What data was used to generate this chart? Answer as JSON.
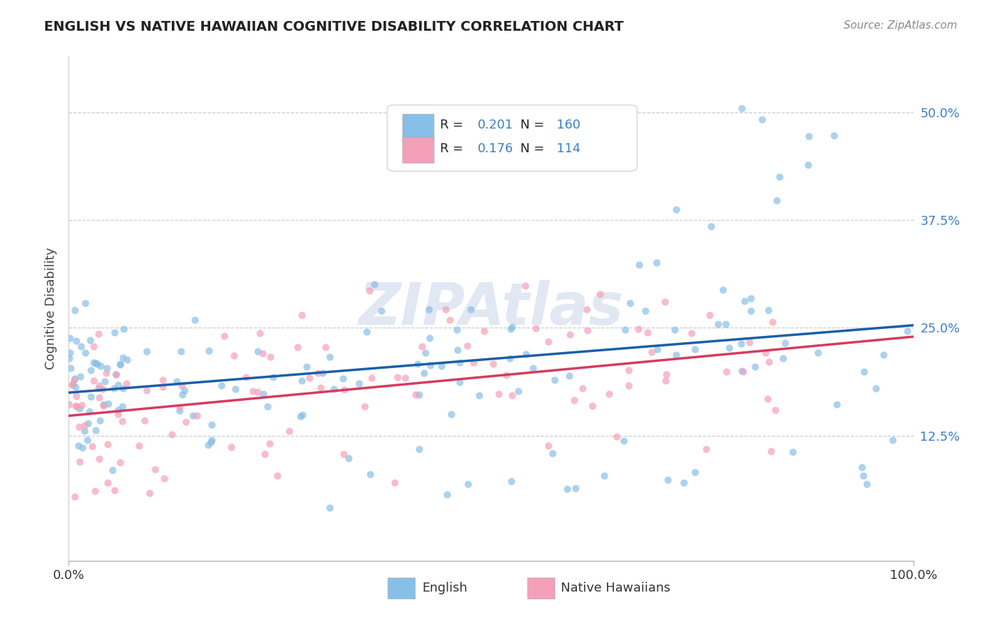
{
  "title": "ENGLISH VS NATIVE HAWAIIAN COGNITIVE DISABILITY CORRELATION CHART",
  "source": "Source: ZipAtlas.com",
  "ylabel": "Cognitive Disability",
  "ytick_labels": [
    "12.5%",
    "25.0%",
    "37.5%",
    "50.0%"
  ],
  "ytick_values": [
    0.125,
    0.25,
    0.375,
    0.5
  ],
  "xlim": [
    0.0,
    1.0
  ],
  "ylim": [
    -0.02,
    0.565
  ],
  "english_R": 0.201,
  "english_N": 160,
  "hawaiian_R": 0.176,
  "hawaiian_N": 114,
  "english_color": "#88bfe8",
  "hawaiian_color": "#f4a0b8",
  "english_line_color": "#1a5fa8",
  "hawaiian_line_color": "#d63b60",
  "legend_label_english": "English",
  "legend_label_hawaiian": "Native Hawaiians",
  "background_color": "#ffffff",
  "grid_color": "#cccccc",
  "title_color": "#222222",
  "source_color": "#888888",
  "number_color": "#3b7ec8",
  "watermark_color": "#cdd8eb",
  "scatter_alpha": 0.7,
  "scatter_size": 55
}
